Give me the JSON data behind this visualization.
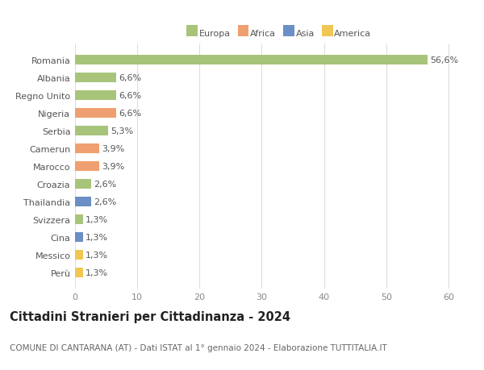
{
  "categories": [
    "Perù",
    "Messico",
    "Cina",
    "Svizzera",
    "Thailandia",
    "Croazia",
    "Marocco",
    "Camerun",
    "Serbia",
    "Nigeria",
    "Regno Unito",
    "Albania",
    "Romania"
  ],
  "values": [
    1.3,
    1.3,
    1.3,
    1.3,
    2.6,
    2.6,
    3.9,
    3.9,
    5.3,
    6.6,
    6.6,
    6.6,
    56.6
  ],
  "colors": [
    "#f0c654",
    "#f0c654",
    "#6b8fc4",
    "#a8c47a",
    "#6b8fc4",
    "#a8c47a",
    "#f0a070",
    "#f0a070",
    "#a8c47a",
    "#f0a070",
    "#a8c47a",
    "#a8c47a",
    "#a8c47a"
  ],
  "legend_labels": [
    "Europa",
    "Africa",
    "Asia",
    "America"
  ],
  "legend_colors": [
    "#a8c47a",
    "#f0a070",
    "#6b8fc4",
    "#f0c654"
  ],
  "title": "Cittadini Stranieri per Cittadinanza - 2024",
  "subtitle": "COMUNE DI CANTARANA (AT) - Dati ISTAT al 1° gennaio 2024 - Elaborazione TUTTITALIA.IT",
  "xlim": [
    0,
    63
  ],
  "xticks": [
    0,
    10,
    20,
    30,
    40,
    50,
    60
  ],
  "bar_height": 0.55,
  "background_color": "#ffffff",
  "grid_color": "#dddddd",
  "label_fontsize": 8,
  "ytick_fontsize": 8,
  "xtick_fontsize": 8,
  "title_fontsize": 10.5,
  "subtitle_fontsize": 7.5
}
